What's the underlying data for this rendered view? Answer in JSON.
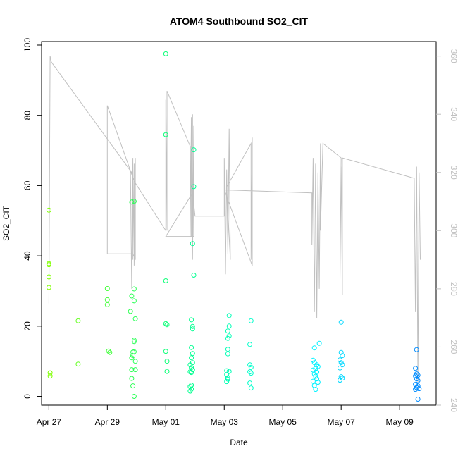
{
  "chart_data": {
    "type": "scatter",
    "title": "ATOM4 Southbound SO2_CIT",
    "xlabel": "Date",
    "ylabel": "SO2_CIT",
    "x_axis": {
      "type": "date",
      "min": "2017-04-26T18:00",
      "max": "2017-05-10T06:00",
      "ticks": [
        {
          "value": "2017-04-27",
          "label": "Apr 27"
        },
        {
          "value": "2017-04-29",
          "label": "Apr 29"
        },
        {
          "value": "2017-05-01",
          "label": "May 01"
        },
        {
          "value": "2017-05-03",
          "label": "May 03"
        },
        {
          "value": "2017-05-05",
          "label": "May 05"
        },
        {
          "value": "2017-05-07",
          "label": "May 07"
        },
        {
          "value": "2017-05-09",
          "label": "May 09"
        }
      ]
    },
    "y_axis": {
      "min": -2.5,
      "max": 101,
      "ticks": [
        0,
        20,
        40,
        60,
        80,
        100
      ]
    },
    "y2_axis": {
      "min": 240,
      "max": 365,
      "ticks": [
        240,
        260,
        280,
        300,
        320,
        340,
        360
      ],
      "color": "#c0c0c0"
    },
    "grid": false,
    "legend": "none",
    "series": [
      {
        "kind": "points",
        "axis": "left",
        "marker": "open-circle",
        "color_gradient": [
          "#80ff00",
          "#00ff80",
          "#00ffff",
          "#0080ff"
        ],
        "points": [
          [
            "2017-04-27T00:00",
            53.0
          ],
          [
            "2017-04-27T00:00",
            37.5
          ],
          [
            "2017-04-27T00:00",
            37.8
          ],
          [
            "2017-04-27T00:00",
            34.0
          ],
          [
            "2017-04-27T00:00",
            31.0
          ],
          [
            "2017-04-27T01:00",
            6.7
          ],
          [
            "2017-04-27T01:00",
            5.8
          ],
          [
            "2017-04-28T00:00",
            21.5
          ],
          [
            "2017-04-28T00:00",
            9.2
          ],
          [
            "2017-04-29T00:00",
            30.7
          ],
          [
            "2017-04-29T00:00",
            27.5
          ],
          [
            "2017-04-29T00:00",
            26.1
          ],
          [
            "2017-04-29T01:00",
            12.9
          ],
          [
            "2017-04-29T02:00",
            12.5
          ],
          [
            "2017-04-29T19:00",
            24.2
          ],
          [
            "2017-04-29T20:00",
            55.3
          ],
          [
            "2017-04-29T20:00",
            28.6
          ],
          [
            "2017-04-29T20:00",
            11.0
          ],
          [
            "2017-04-29T21:00",
            11.6
          ],
          [
            "2017-04-29T21:00",
            12.6
          ],
          [
            "2017-04-29T20:00",
            7.6
          ],
          [
            "2017-04-29T20:00",
            5.1
          ],
          [
            "2017-04-29T21:00",
            3.0
          ],
          [
            "2017-04-29T22:00",
            55.5
          ],
          [
            "2017-04-29T22:00",
            30.6
          ],
          [
            "2017-04-29T22:00",
            27.2
          ],
          [
            "2017-04-29T23:00",
            22.1
          ],
          [
            "2017-04-29T22:00",
            16.0
          ],
          [
            "2017-04-29T22:00",
            15.6
          ],
          [
            "2017-04-29T22:00",
            12.7
          ],
          [
            "2017-04-29T23:00",
            10.0
          ],
          [
            "2017-04-29T23:00",
            7.6
          ],
          [
            "2017-04-29T22:00",
            0.0
          ],
          [
            "2017-05-01T00:00",
            97.5
          ],
          [
            "2017-05-01T00:00",
            74.5
          ],
          [
            "2017-05-01T00:00",
            32.9
          ],
          [
            "2017-05-01T00:00",
            20.7
          ],
          [
            "2017-05-01T01:00",
            20.4
          ],
          [
            "2017-05-01T00:00",
            12.8
          ],
          [
            "2017-05-01T01:00",
            10.0
          ],
          [
            "2017-05-01T01:00",
            7.1
          ],
          [
            "2017-05-01T20:00",
            9.0
          ],
          [
            "2017-05-01T20:00",
            7.0
          ],
          [
            "2017-05-01T21:00",
            13.9
          ],
          [
            "2017-05-01T21:00",
            11.0
          ],
          [
            "2017-05-01T22:00",
            12.2
          ],
          [
            "2017-05-01T21:00",
            21.8
          ],
          [
            "2017-05-01T22:00",
            19.2
          ],
          [
            "2017-05-01T21:00",
            8.2
          ],
          [
            "2017-05-01T21:00",
            6.8
          ],
          [
            "2017-05-01T21:00",
            3.2
          ],
          [
            "2017-05-01T20:00",
            2.8
          ],
          [
            "2017-05-01T21:00",
            2.1
          ],
          [
            "2017-05-01T20:00",
            1.5
          ],
          [
            "2017-05-01T23:00",
            70.2
          ],
          [
            "2017-05-01T23:00",
            59.7
          ],
          [
            "2017-05-01T22:00",
            43.5
          ],
          [
            "2017-05-01T23:00",
            34.5
          ],
          [
            "2017-05-01T22:00",
            19.9
          ],
          [
            "2017-05-01T22:00",
            9.6
          ],
          [
            "2017-05-01T22:00",
            7.6
          ],
          [
            "2017-05-03T04:00",
            23.0
          ],
          [
            "2017-05-03T04:00",
            20.0
          ],
          [
            "2017-05-03T03:00",
            18.6
          ],
          [
            "2017-05-03T03:00",
            16.5
          ],
          [
            "2017-05-03T04:00",
            17.2
          ],
          [
            "2017-05-03T03:00",
            13.4
          ],
          [
            "2017-05-03T03:00",
            12.1
          ],
          [
            "2017-05-03T02:00",
            7.3
          ],
          [
            "2017-05-03T04:00",
            7.1
          ],
          [
            "2017-05-03T02:00",
            6.2
          ],
          [
            "2017-05-03T03:00",
            5.3
          ],
          [
            "2017-05-03T02:00",
            4.2
          ],
          [
            "2017-05-03T03:00",
            4.9
          ],
          [
            "2017-05-03T22:00",
            21.5
          ],
          [
            "2017-05-03T21:00",
            14.8
          ],
          [
            "2017-05-03T21:00",
            9.0
          ],
          [
            "2017-05-03T22:00",
            8.3
          ],
          [
            "2017-05-03T21:00",
            7.0
          ],
          [
            "2017-05-03T22:00",
            6.6
          ],
          [
            "2017-05-03T21:00",
            3.8
          ],
          [
            "2017-05-03T22:00",
            2.4
          ],
          [
            "2017-05-06T02:00",
            13.8
          ],
          [
            "2017-05-06T06:00",
            15.1
          ],
          [
            "2017-05-06T01:00",
            10.3
          ],
          [
            "2017-05-06T02:00",
            9.6
          ],
          [
            "2017-05-06T04:00",
            9.0
          ],
          [
            "2017-05-06T05:00",
            8.5
          ],
          [
            "2017-05-06T03:00",
            7.9
          ],
          [
            "2017-05-06T01:00",
            7.5
          ],
          [
            "2017-05-06T04:00",
            6.9
          ],
          [
            "2017-05-06T02:00",
            6.4
          ],
          [
            "2017-05-06T03:00",
            5.7
          ],
          [
            "2017-05-06T04:00",
            5.0
          ],
          [
            "2017-05-06T01:00",
            4.3
          ],
          [
            "2017-05-06T05:00",
            4.0
          ],
          [
            "2017-05-06T02:00",
            3.1
          ],
          [
            "2017-05-06T03:00",
            2.0
          ],
          [
            "2017-05-07T00:00",
            21.1
          ],
          [
            "2017-05-07T00:00",
            12.5
          ],
          [
            "2017-05-07T01:00",
            11.6
          ],
          [
            "2017-05-06T23:00",
            10.4
          ],
          [
            "2017-05-07T00:00",
            9.6
          ],
          [
            "2017-05-07T01:00",
            9.0
          ],
          [
            "2017-05-06T23:00",
            8.1
          ],
          [
            "2017-05-07T00:00",
            5.6
          ],
          [
            "2017-05-07T01:00",
            5.2
          ],
          [
            "2017-05-06T23:00",
            4.6
          ],
          [
            "2017-05-09T14:00",
            13.3
          ],
          [
            "2017-05-09T13:00",
            8.0
          ],
          [
            "2017-05-09T14:00",
            6.4
          ],
          [
            "2017-05-09T15:00",
            6.0
          ],
          [
            "2017-05-09T13:00",
            5.8
          ],
          [
            "2017-05-09T14:00",
            5.0
          ],
          [
            "2017-05-09T15:00",
            4.5
          ],
          [
            "2017-05-09T13:00",
            3.4
          ],
          [
            "2017-05-09T15:00",
            3.0
          ],
          [
            "2017-05-09T14:00",
            2.5
          ],
          [
            "2017-05-09T13:00",
            2.0
          ],
          [
            "2017-05-09T16:00",
            2.2
          ],
          [
            "2017-05-09T15:00",
            -0.8
          ]
        ]
      },
      {
        "kind": "line",
        "axis": "right",
        "color": "#c0c0c0",
        "points": [
          [
            "2017-04-27T00:00",
            275
          ],
          [
            "2017-04-27T01:00",
            360
          ],
          [
            "2017-04-27T02:00",
            358
          ],
          [
            "2017-04-29T20:00",
            320
          ],
          [
            "2017-04-29T19:00",
            320
          ],
          [
            "2017-04-29T20:00",
            280
          ],
          [
            "2017-04-29T21:00",
            325
          ],
          [
            "2017-04-29T21:00",
            290
          ],
          [
            "2017-04-29T22:00",
            323
          ],
          [
            "2017-04-29T22:00",
            288
          ],
          [
            "2017-04-29T23:00",
            325
          ],
          [
            "2017-04-29T23:00",
            290
          ],
          [
            "2017-04-29T21:00",
            292
          ],
          [
            "2017-04-29T00:00",
            292
          ],
          [
            "2017-04-29T00:00",
            343
          ],
          [
            "2017-04-29T22:00",
            317
          ],
          [
            "2017-05-01T00:00",
            300
          ],
          [
            "2017-05-01T00:00",
            345
          ],
          [
            "2017-05-01T01:00",
            300
          ],
          [
            "2017-05-01T01:00",
            348
          ],
          [
            "2017-05-01T02:00",
            347
          ],
          [
            "2017-05-01T20:00",
            329
          ],
          [
            "2017-05-01T20:00",
            298
          ],
          [
            "2017-05-01T21:00",
            339
          ],
          [
            "2017-05-01T21:00",
            298
          ],
          [
            "2017-05-01T22:00",
            340
          ],
          [
            "2017-05-01T22:00",
            290
          ],
          [
            "2017-05-01T23:00",
            336
          ],
          [
            "2017-05-01T23:00",
            298
          ],
          [
            "2017-05-01T00:00",
            298
          ],
          [
            "2017-05-01T22:00",
            313
          ],
          [
            "2017-05-02T00:00",
            305
          ],
          [
            "2017-05-03T00:00",
            305
          ],
          [
            "2017-05-03T00:00",
            325
          ],
          [
            "2017-05-03T01:00",
            285
          ],
          [
            "2017-05-03T02:00",
            321
          ],
          [
            "2017-05-03T03:00",
            292
          ],
          [
            "2017-05-03T04:00",
            335
          ],
          [
            "2017-05-03T05:00",
            290
          ],
          [
            "2017-05-03T02:00",
            315
          ],
          [
            "2017-05-03T22:00",
            330
          ],
          [
            "2017-05-03T22:00",
            290
          ],
          [
            "2017-05-03T23:00",
            332
          ],
          [
            "2017-05-03T23:00",
            288
          ],
          [
            "2017-05-03T00:00",
            314
          ],
          [
            "2017-05-06T00:00",
            313
          ],
          [
            "2017-05-06T00:00",
            295
          ],
          [
            "2017-05-06T01:00",
            325
          ],
          [
            "2017-05-06T02:00",
            272
          ],
          [
            "2017-05-06T03:00",
            323
          ],
          [
            "2017-05-06T04:00",
            270
          ],
          [
            "2017-05-06T05:00",
            320
          ],
          [
            "2017-05-06T06:00",
            280
          ],
          [
            "2017-05-06T07:00",
            330
          ],
          [
            "2017-05-06T07:00",
            300
          ],
          [
            "2017-05-06T09:00",
            330
          ],
          [
            "2017-05-07T00:00",
            325
          ],
          [
            "2017-05-06T23:00",
            283
          ],
          [
            "2017-05-07T00:00",
            322
          ],
          [
            "2017-05-07T01:00",
            278
          ],
          [
            "2017-05-07T01:00",
            325
          ],
          [
            "2017-05-09T12:00",
            318
          ],
          [
            "2017-05-09T13:00",
            272
          ],
          [
            "2017-05-09T14:00",
            322
          ],
          [
            "2017-05-09T15:00",
            248
          ],
          [
            "2017-05-09T16:00",
            320
          ],
          [
            "2017-05-09T17:00",
            290
          ]
        ]
      }
    ]
  }
}
